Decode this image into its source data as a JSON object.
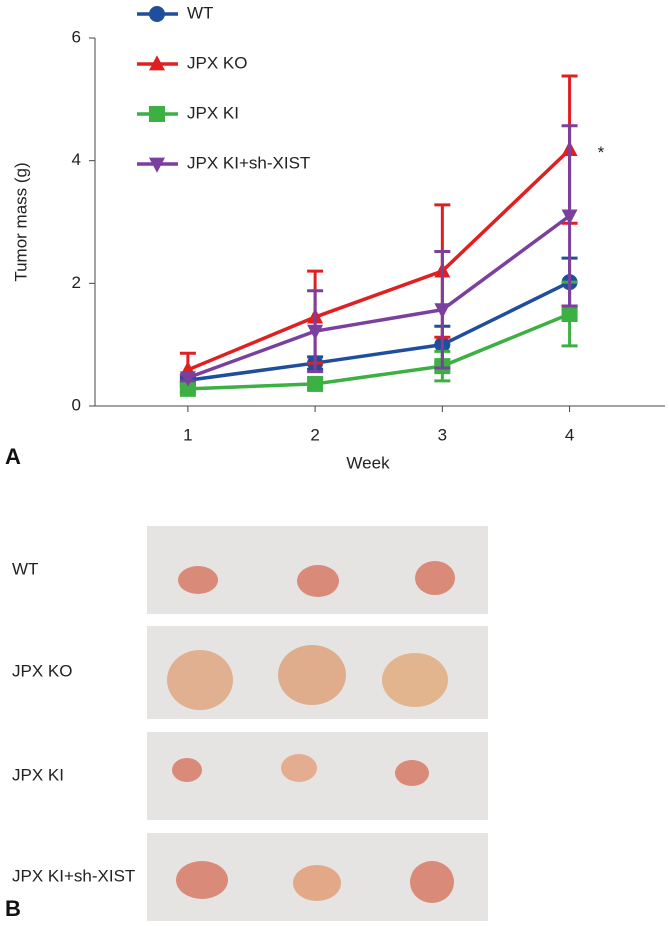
{
  "chart_data": {
    "type": "line",
    "y_label": "Tumor mass (g)",
    "x_label": "Week",
    "x": [
      1,
      2,
      3,
      4
    ],
    "xlim": [
      0.27,
      4.75
    ],
    "xticks": [
      1,
      2,
      3,
      4
    ],
    "ylim": [
      0,
      6
    ],
    "yticks": [
      0,
      2,
      4,
      6
    ],
    "annotation": "*",
    "series": [
      {
        "name": "WT",
        "color": "#1f4e9c",
        "marker": "circle",
        "values": [
          0.42,
          0.7,
          1.0,
          2.02
        ],
        "errors": [
          0.05,
          0.1,
          0.3,
          0.39
        ]
      },
      {
        "name": "JPX KO",
        "color": "#e02020",
        "marker": "triangle",
        "values": [
          0.59,
          1.45,
          2.2,
          4.18
        ],
        "errors": [
          0.27,
          0.75,
          1.08,
          1.2
        ]
      },
      {
        "name": "JPX KI",
        "color": "#3cb043",
        "marker": "square",
        "values": [
          0.28,
          0.36,
          0.65,
          1.5
        ],
        "errors": [
          0.05,
          0.08,
          0.24,
          0.52
        ]
      },
      {
        "name": "JPX KI+sh-XIST",
        "color": "#7b3f9e",
        "marker": "triangle-down",
        "values": [
          0.46,
          1.22,
          1.57,
          3.1
        ],
        "errors": [
          0.05,
          0.66,
          0.95,
          1.47
        ]
      }
    ]
  },
  "panel_a": {
    "label": "A"
  },
  "panel_b": {
    "label": "B",
    "rows": [
      "WT",
      "JPX KO",
      "JPX KI",
      "JPX KI+sh-XIST"
    ]
  }
}
